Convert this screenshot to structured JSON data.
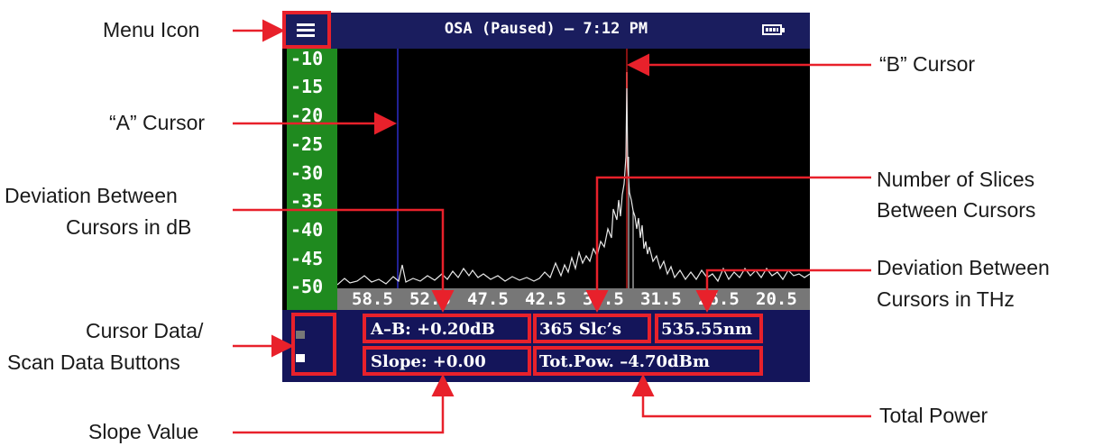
{
  "screen": {
    "title": "OSA (Paused) – 7:12 PM",
    "menu_icon": "hamburger-menu-icon",
    "battery_icon": "battery-icon",
    "y_axis_labels": [
      "-10",
      "-15",
      "-20",
      "-25",
      "-30",
      "-35",
      "-40",
      "-45",
      "-50"
    ],
    "x_axis_labels": [
      "58.5",
      "52.5",
      "47.5",
      "42.5",
      "36.5",
      "31.5",
      "26.5",
      "20.5"
    ],
    "deviation_db": "A–B: +0.20dB",
    "slices": "365 Slc’s",
    "wavelength": "535.55nm",
    "slope": "Slope: +0.00",
    "total_power": "Tot.Pow. –4.70dBm",
    "colors": {
      "title_bar": "#1a1d5e",
      "y_axis": "#1f8a1f",
      "cursor_a": "#2c2cc8",
      "cursor_b": "#e02020",
      "highlight": "#e8212b"
    }
  },
  "callouts": {
    "menu_icon": "Menu Icon",
    "b_cursor": "“B” Cursor",
    "a_cursor": "“A” Cursor",
    "slices_line1": "Number of Slices",
    "slices_line2": "Between Cursors",
    "deviation_db_line1": "Deviation Between",
    "deviation_db_line2": "Cursors in dB",
    "deviation_thz_line1": "Deviation Between",
    "deviation_thz_line2": "Cursors in THz",
    "buttons_line1": "Cursor Data/",
    "buttons_line2": "Scan Data Buttons",
    "slope_value": "Slope Value",
    "total_power": "Total Power"
  }
}
